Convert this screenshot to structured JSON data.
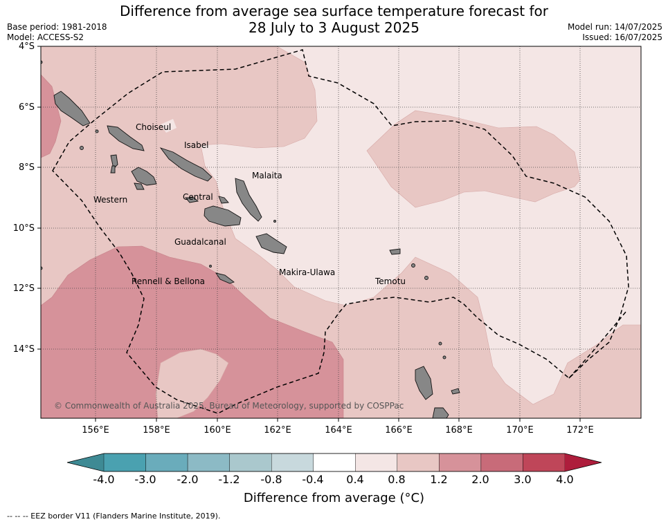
{
  "title": {
    "line1": "Difference from average sea surface temperature forecast for",
    "line2": "28 July to 3 August 2025"
  },
  "meta_left": {
    "base_period": "Base period: 1981-2018",
    "model": "Model: ACCESS-S2"
  },
  "meta_right": {
    "model_run": "Model run: 14/07/2025",
    "issued": "Issued: 16/07/2025"
  },
  "map": {
    "lat_labels": [
      "4°S",
      "6°S",
      "8°S",
      "10°S",
      "12°S",
      "14°S"
    ],
    "lon_labels": [
      "156°E",
      "158°E",
      "160°E",
      "162°E",
      "164°E",
      "166°E",
      "168°E",
      "170°E",
      "172°E"
    ],
    "places": [
      {
        "name": "Choiseul"
      },
      {
        "name": "Isabel"
      },
      {
        "name": "Malaita"
      },
      {
        "name": "Western"
      },
      {
        "name": "Central"
      },
      {
        "name": "Guadalcanal"
      },
      {
        "name": "Makira-Ulawa"
      },
      {
        "name": "Temotu"
      },
      {
        "name": "Rennell & Bellona"
      }
    ],
    "copyright": "© Commonwealth of Australia 2025, Bureau of Meteorology, supported by COSPPac",
    "colors": {
      "band_04_08": "#f4e6e5",
      "band_08_12": "#e8c7c4",
      "band_12_20": "#d6929a",
      "land": "#878787"
    }
  },
  "colorbar": {
    "ticks": [
      "-4.0",
      "-3.0",
      "-2.0",
      "-1.2",
      "-0.8",
      "-0.4",
      "0.4",
      "0.8",
      "1.2",
      "2.0",
      "3.0",
      "4.0"
    ],
    "colors": [
      "#4aa1b0",
      "#6aacbb",
      "#8cbac5",
      "#aac8cd",
      "#c8d9dd",
      "#ffffff",
      "#f4e6e5",
      "#e8c7c4",
      "#d6929a",
      "#c86b79",
      "#bf4659"
    ],
    "low_extend": "#3e8a94",
    "high_extend": "#ae1d3c",
    "label": "Difference from average (°C)"
  },
  "footer": "--  --  -- EEZ border V11 (Flanders Marine Institute, 2019)."
}
